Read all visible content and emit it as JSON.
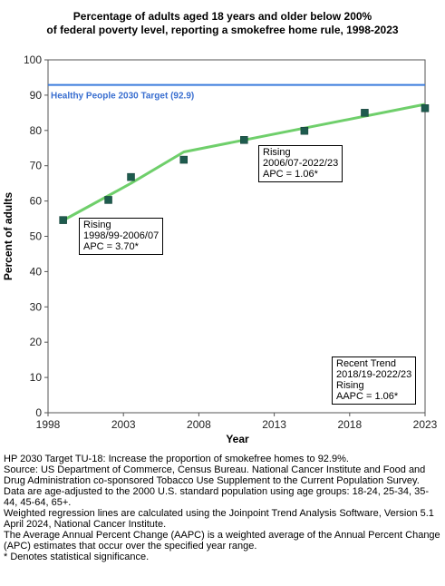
{
  "title_lines": [
    "Percentage of adults aged 18 years and older below 200%",
    "of federal poverty level, reporting a smokefree home rule, 1998-2023"
  ],
  "chart_data": {
    "type": "scatter",
    "title": "Percentage of adults aged 18 years and older below 200% of federal poverty level, reporting a smokefree home rule, 1998-2023",
    "xlabel": "Year",
    "ylabel": "Percent of adults",
    "xlim": [
      1998,
      2023
    ],
    "ylim": [
      0,
      100
    ],
    "x_ticks": [
      1998,
      2003,
      2008,
      2013,
      2018,
      2023
    ],
    "y_ticks": [
      0,
      10,
      20,
      30,
      40,
      50,
      60,
      70,
      80,
      90,
      100
    ],
    "grid": false,
    "points": [
      {
        "x": 1999,
        "y": 54.6
      },
      {
        "x": 2002,
        "y": 60.3
      },
      {
        "x": 2003.5,
        "y": 66.8
      },
      {
        "x": 2007,
        "y": 71.7
      },
      {
        "x": 2011,
        "y": 77.3
      },
      {
        "x": 2015,
        "y": 79.9
      },
      {
        "x": 2019,
        "y": 85.0
      },
      {
        "x": 2023,
        "y": 86.3
      }
    ],
    "trend_line": [
      {
        "x": 1999,
        "y": 54.5
      },
      {
        "x": 2003.5,
        "y": 65.0
      },
      {
        "x": 2007,
        "y": 73.9
      },
      {
        "x": 2023,
        "y": 87.4
      }
    ],
    "target": {
      "value": 92.9,
      "label": "Healthy People 2030 Target (92.9)"
    },
    "colors": {
      "points": "#1e5b4e",
      "trend": "#6fcf6b",
      "target": "#3a7bdc",
      "target_label": "#3a6fd0"
    }
  },
  "annotations": {
    "segment1": [
      "Rising",
      "1998/99-2006/07",
      "APC =  3.70*"
    ],
    "segment2": [
      "Rising",
      "2006/07-2022/23",
      "APC =  1.06*"
    ],
    "recent": [
      "Recent Trend",
      "2018/19-2022/23",
      "Rising",
      "AAPC =  1.06*"
    ]
  },
  "notes": [
    "HP 2030 Target TU-18: Increase the proportion of smokefree homes to 92.9%.",
    "Source: US Department of Commerce, Census Bureau. National Cancer Institute and Food and Drug Administration co-sponsored Tobacco Use Supplement to the Current Population Survey.",
    "Data are age-adjusted to the 2000 U.S. standard population using age groups: 18-24, 25-34, 35-44, 45-64, 65+.",
    "Weighted regression lines are calculated using the Joinpoint Trend Analysis Software, Version 5.1 April 2024, National Cancer Institute.",
    "The Average Annual Percent Change (AAPC) is a weighted average of the Annual Percent Change (APC) estimates that occur over the specified year range.",
    "* Denotes statistical significance."
  ]
}
